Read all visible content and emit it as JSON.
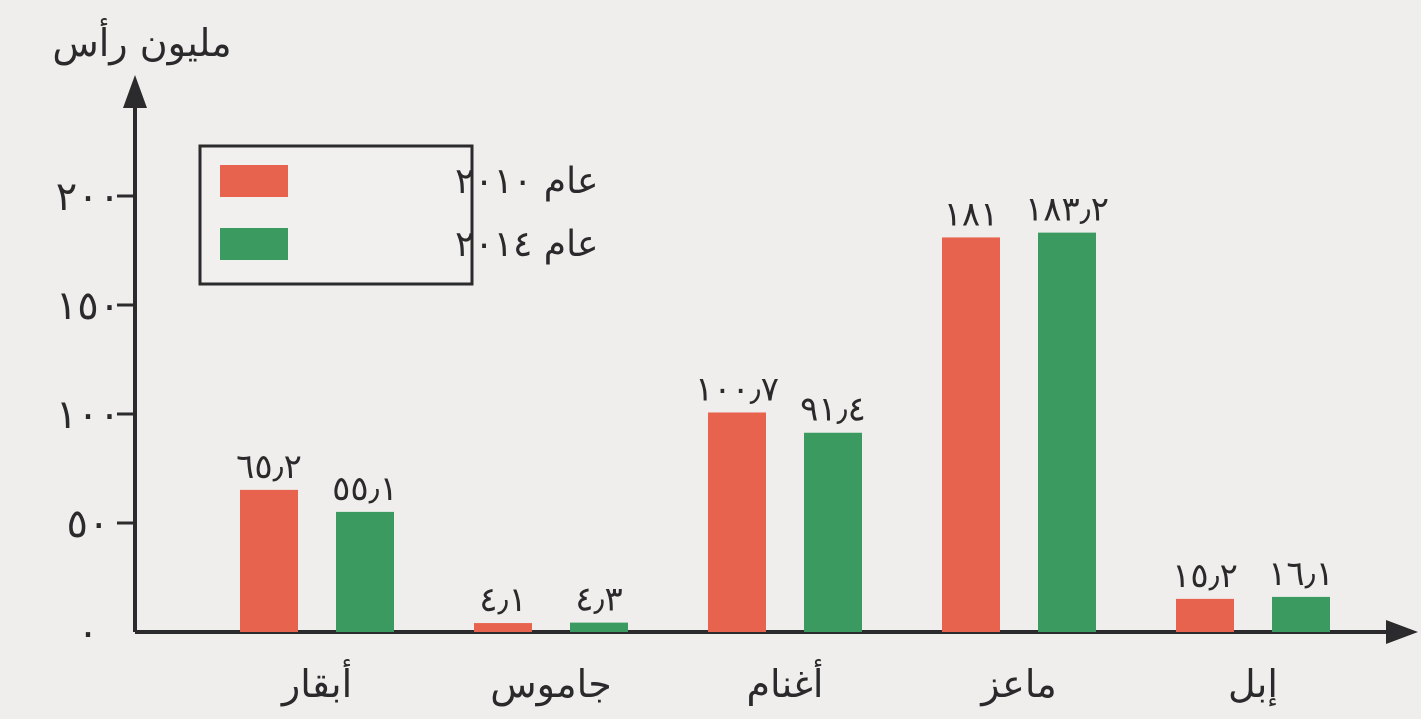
{
  "chart_data": {
    "type": "bar",
    "ylabel": "مليون رأس",
    "ylim": [
      0,
      200
    ],
    "yticks": [
      0,
      50,
      100,
      150,
      200
    ],
    "ytick_labels": [
      "٠",
      "٥٠",
      "١٠٠",
      "١٥٠",
      "٢٠٠"
    ],
    "categories": [
      "أبقار",
      "جاموس",
      "أغنام",
      "ماعز",
      "إبل"
    ],
    "series": [
      {
        "name": "عام ٢٠١٠",
        "color": "#e8634e",
        "values": [
          65.2,
          4.1,
          100.7,
          181,
          15.2
        ],
        "labels": [
          "٦٥٫٢",
          "٤٫١",
          "١٠٠٫٧",
          "١٨١",
          "١٥٫٢"
        ]
      },
      {
        "name": "عام ٢٠١٤",
        "color": "#3a9a60",
        "values": [
          55.1,
          4.3,
          91.4,
          183.2,
          16.1
        ],
        "labels": [
          "٥٥٫١",
          "٤٫٣",
          "٩١٫٤",
          "١٨٣٫٢",
          "١٦٫١"
        ]
      }
    ],
    "legend_position": "top-left",
    "grid": false
  }
}
